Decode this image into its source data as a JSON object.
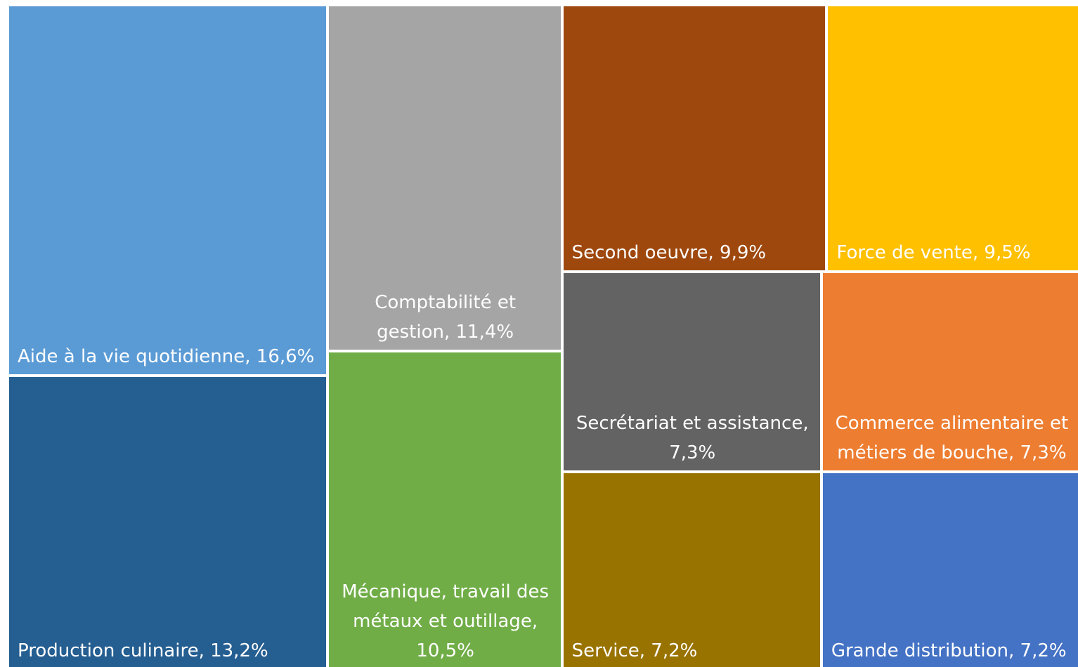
{
  "chart_data": {
    "type": "treemap",
    "categories": [
      "Aide à la vie quotidienne,",
      "Production culinaire,",
      "Comptabilité et gestion,",
      "Mécanique, travail des métaux et outillage,",
      "Second oeuvre,",
      "Force de vente,",
      "Secrétariat et assistance,",
      "Service,",
      "Commerce alimentaire et métiers de bouche,",
      "Grande distribution,"
    ],
    "values": [
      16.6,
      13.2,
      11.4,
      10.5,
      9.9,
      9.5,
      7.3,
      7.2,
      7.3,
      7.2
    ],
    "value_labels": [
      "16,6%",
      "13,2%",
      "11,4%",
      "10,5%",
      "9,9%",
      "9,5%",
      "7,3%",
      "7,2%",
      "7,3%",
      "7,2%"
    ],
    "colors": [
      "#5b9bd5",
      "#255e91",
      "#a5a5a5",
      "#70ad47",
      "#9e480e",
      "#ffc000",
      "#636363",
      "#997300",
      "#ed7d31",
      "#4472c4"
    ]
  }
}
